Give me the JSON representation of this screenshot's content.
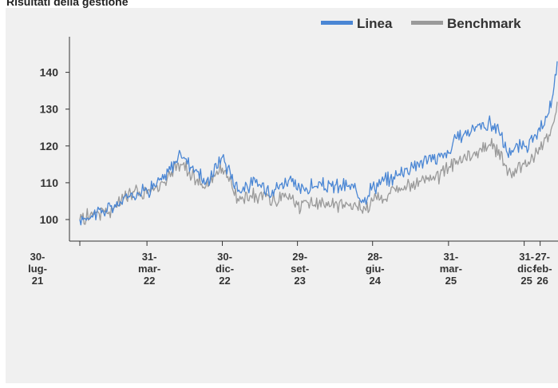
{
  "page": {
    "title": "Risultati della gestione"
  },
  "colors": {
    "linea": "#4a86d4",
    "benchmark": "#9a9a9a",
    "axis": "#333333",
    "panel": "#f0f0f0"
  },
  "chart_data": {
    "type": "line",
    "title": "",
    "xlabel": "",
    "ylabel": "",
    "ylim": [
      92,
      150
    ],
    "yticks": [
      100,
      110,
      120,
      130,
      140
    ],
    "legend_position": "top-right",
    "grid": false,
    "x_range": [
      "2021-07-30",
      "2026-04-30"
    ],
    "x_ticks": [
      {
        "date": "2021-07-30",
        "label": [
          "30-",
          "lug-",
          "21"
        ]
      },
      {
        "date": "2022-03-31",
        "label": [
          "31-",
          "mar-",
          "22"
        ]
      },
      {
        "date": "2022-12-30",
        "label": [
          "30-",
          "dic-",
          "22"
        ]
      },
      {
        "date": "2023-09-29",
        "label": [
          "29-",
          "set-",
          "23"
        ]
      },
      {
        "date": "2024-06-28",
        "label": [
          "28-",
          "giu-",
          "24"
        ]
      },
      {
        "date": "2025-03-31",
        "label": [
          "31-",
          "mar-",
          "25"
        ]
      },
      {
        "date": "2025-12-31",
        "label": [
          "31-",
          "dic-",
          "25"
        ]
      },
      {
        "date": "2026-02-27",
        "label": [
          "27-",
          "feb-",
          "26"
        ]
      }
    ],
    "series": [
      {
        "name": "Linea",
        "points": [
          [
            "2021-07-30",
            100
          ],
          [
            "2021-09-30",
            102
          ],
          [
            "2021-11-30",
            103
          ],
          [
            "2022-01-31",
            107
          ],
          [
            "2022-03-31",
            108
          ],
          [
            "2022-05-31",
            111
          ],
          [
            "2022-07-31",
            118
          ],
          [
            "2022-09-30",
            113
          ],
          [
            "2022-10-31",
            110
          ],
          [
            "2022-12-30",
            117
          ],
          [
            "2023-02-28",
            108
          ],
          [
            "2023-04-30",
            110
          ],
          [
            "2023-06-30",
            108
          ],
          [
            "2023-08-31",
            111
          ],
          [
            "2023-09-29",
            108
          ],
          [
            "2023-11-30",
            109
          ],
          [
            "2024-01-31",
            109
          ],
          [
            "2024-03-31",
            109
          ],
          [
            "2024-05-31",
            106
          ],
          [
            "2024-06-28",
            109
          ],
          [
            "2024-08-31",
            111
          ],
          [
            "2024-10-31",
            114
          ],
          [
            "2024-12-31",
            116
          ],
          [
            "2025-02-28",
            117
          ],
          [
            "2025-03-31",
            118
          ],
          [
            "2025-04-30",
            122
          ],
          [
            "2025-06-30",
            125
          ],
          [
            "2025-08-31",
            126
          ],
          [
            "2025-09-30",
            124
          ],
          [
            "2025-10-31",
            118
          ],
          [
            "2025-12-31",
            120
          ],
          [
            "2026-01-31",
            121
          ],
          [
            "2026-02-27",
            124
          ],
          [
            "2026-03-31",
            129
          ],
          [
            "2026-04-15",
            134
          ],
          [
            "2026-04-30",
            143
          ]
        ]
      },
      {
        "name": "Benchmark",
        "points": [
          [
            "2021-07-30",
            100
          ],
          [
            "2021-09-30",
            102
          ],
          [
            "2021-11-30",
            103
          ],
          [
            "2022-01-31",
            107
          ],
          [
            "2022-03-31",
            107
          ],
          [
            "2022-05-31",
            110
          ],
          [
            "2022-07-31",
            115
          ],
          [
            "2022-09-30",
            111
          ],
          [
            "2022-10-31",
            109
          ],
          [
            "2022-12-30",
            114
          ],
          [
            "2023-02-28",
            105
          ],
          [
            "2023-04-30",
            107
          ],
          [
            "2023-06-30",
            105
          ],
          [
            "2023-08-31",
            107
          ],
          [
            "2023-09-29",
            104
          ],
          [
            "2023-11-30",
            104
          ],
          [
            "2024-01-31",
            104
          ],
          [
            "2024-03-31",
            104
          ],
          [
            "2024-05-31",
            103
          ],
          [
            "2024-06-28",
            105
          ],
          [
            "2024-08-31",
            107
          ],
          [
            "2024-10-31",
            109
          ],
          [
            "2024-12-31",
            111
          ],
          [
            "2025-02-28",
            112
          ],
          [
            "2025-03-31",
            114
          ],
          [
            "2025-04-30",
            116
          ],
          [
            "2025-06-30",
            118
          ],
          [
            "2025-08-31",
            120
          ],
          [
            "2025-09-30",
            119
          ],
          [
            "2025-10-31",
            112
          ],
          [
            "2025-12-31",
            115
          ],
          [
            "2026-01-31",
            117
          ],
          [
            "2026-02-27",
            119
          ],
          [
            "2026-03-31",
            123
          ],
          [
            "2026-04-15",
            126
          ],
          [
            "2026-04-30",
            132
          ]
        ]
      }
    ]
  }
}
